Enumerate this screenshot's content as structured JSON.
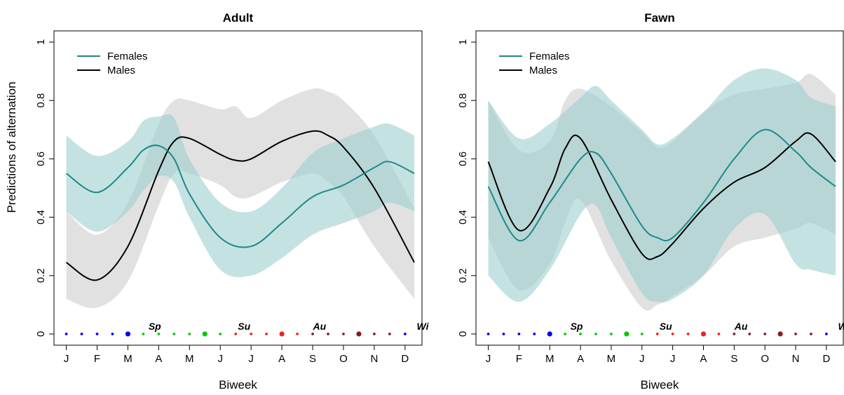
{
  "figure": {
    "ylabel": "Predictions of alternation",
    "xlabel": "Biweek"
  },
  "legend": [
    {
      "name": "Females",
      "color": "#1a8a8a"
    },
    {
      "name": "Males",
      "color": "#000000"
    }
  ],
  "colors": {
    "female_band": "#9fcfcf",
    "male_band": "#c8c8c8"
  },
  "xticks": [
    {
      "x": 1,
      "label": "J"
    },
    {
      "x": 3,
      "label": "F"
    },
    {
      "x": 5,
      "label": "M"
    },
    {
      "x": 7,
      "label": "A"
    },
    {
      "x": 9,
      "label": "M"
    },
    {
      "x": 11,
      "label": "J"
    },
    {
      "x": 13,
      "label": "J"
    },
    {
      "x": 15,
      "label": "A"
    },
    {
      "x": 17,
      "label": "S"
    },
    {
      "x": 19,
      "label": "O"
    },
    {
      "x": 21,
      "label": "N"
    },
    {
      "x": 23,
      "label": "D"
    }
  ],
  "yticks": [
    0,
    0.2,
    0.4,
    0.6,
    0.8,
    1
  ],
  "seasons": [
    {
      "label": "Sp",
      "x": 6.2
    },
    {
      "label": "Su",
      "x": 12.0
    },
    {
      "label": "Au",
      "x": 16.9
    },
    {
      "label": "Wi",
      "x": 23.6
    }
  ],
  "season_dots": [
    {
      "x": 1,
      "color": "#0000ee",
      "big": false
    },
    {
      "x": 2,
      "color": "#0000ee",
      "big": false
    },
    {
      "x": 3,
      "color": "#0000ee",
      "big": false
    },
    {
      "x": 4,
      "color": "#0000ee",
      "big": false
    },
    {
      "x": 5,
      "color": "#0000ee",
      "big": true
    },
    {
      "x": 6,
      "color": "#00cc00",
      "big": false
    },
    {
      "x": 7,
      "color": "#00cc00",
      "big": false
    },
    {
      "x": 8,
      "color": "#00cc00",
      "big": false
    },
    {
      "x": 9,
      "color": "#00cc00",
      "big": false
    },
    {
      "x": 10,
      "color": "#00cc00",
      "big": true
    },
    {
      "x": 11,
      "color": "#00cc00",
      "big": false
    },
    {
      "x": 12,
      "color": "#ee2222",
      "big": false
    },
    {
      "x": 13,
      "color": "#ee2222",
      "big": false
    },
    {
      "x": 14,
      "color": "#ee2222",
      "big": false
    },
    {
      "x": 15,
      "color": "#ee2222",
      "big": true
    },
    {
      "x": 16,
      "color": "#ee2222",
      "big": false
    },
    {
      "x": 17,
      "color": "#8b1a1a",
      "big": false
    },
    {
      "x": 18,
      "color": "#8b1a1a",
      "big": false
    },
    {
      "x": 19,
      "color": "#8b1a1a",
      "big": false
    },
    {
      "x": 20,
      "color": "#8b1a1a",
      "big": true
    },
    {
      "x": 21,
      "color": "#8b1a1a",
      "big": false
    },
    {
      "x": 22,
      "color": "#8b1a1a",
      "big": false
    },
    {
      "x": 23,
      "color": "#0000ee",
      "big": false
    }
  ],
  "chart_data": [
    {
      "type": "line",
      "title": "Adult",
      "xlabel": "Biweek",
      "ylabel": "Predictions of alternation",
      "xlim": [
        1,
        23.6
      ],
      "ylim": [
        0,
        1
      ],
      "series": [
        {
          "name": "Males",
          "x": [
            1,
            3,
            5,
            7,
            8,
            9,
            11,
            12,
            13,
            15,
            17,
            18,
            19,
            21,
            23.6
          ],
          "y": [
            0.245,
            0.185,
            0.3,
            0.56,
            0.66,
            0.67,
            0.615,
            0.595,
            0.6,
            0.66,
            0.695,
            0.68,
            0.64,
            0.5,
            0.245
          ],
          "lower": [
            0.12,
            0.09,
            0.18,
            0.44,
            0.55,
            0.55,
            0.51,
            0.47,
            0.47,
            0.52,
            0.55,
            0.52,
            0.47,
            0.3,
            0.12
          ],
          "upper": [
            0.42,
            0.34,
            0.45,
            0.72,
            0.8,
            0.8,
            0.77,
            0.78,
            0.74,
            0.8,
            0.84,
            0.83,
            0.8,
            0.68,
            0.43
          ]
        },
        {
          "name": "Females",
          "x": [
            1,
            3,
            5,
            6,
            7,
            8,
            9,
            11,
            13,
            15,
            17,
            19,
            21,
            22,
            23.6
          ],
          "y": [
            0.55,
            0.485,
            0.57,
            0.63,
            0.645,
            0.6,
            0.48,
            0.33,
            0.3,
            0.38,
            0.47,
            0.51,
            0.57,
            0.59,
            0.55
          ],
          "lower": [
            0.42,
            0.35,
            0.42,
            0.49,
            0.54,
            0.52,
            0.4,
            0.22,
            0.2,
            0.26,
            0.34,
            0.38,
            0.42,
            0.45,
            0.42
          ],
          "upper": [
            0.68,
            0.61,
            0.66,
            0.73,
            0.745,
            0.74,
            0.6,
            0.45,
            0.42,
            0.5,
            0.62,
            0.67,
            0.71,
            0.72,
            0.68
          ]
        }
      ]
    },
    {
      "type": "line",
      "title": "Fawn",
      "xlabel": "Biweek",
      "ylabel": "",
      "xlim": [
        1,
        23.6
      ],
      "ylim": [
        0,
        1
      ],
      "series": [
        {
          "name": "Males",
          "x": [
            1,
            3,
            5,
            6,
            7,
            9,
            11,
            12,
            13,
            15,
            17,
            19,
            21,
            22,
            23.6
          ],
          "y": [
            0.59,
            0.355,
            0.5,
            0.635,
            0.67,
            0.46,
            0.275,
            0.265,
            0.31,
            0.43,
            0.52,
            0.57,
            0.66,
            0.685,
            0.59
          ],
          "lower": [
            0.33,
            0.15,
            0.24,
            0.38,
            0.46,
            0.25,
            0.09,
            0.1,
            0.13,
            0.2,
            0.3,
            0.33,
            0.36,
            0.38,
            0.34
          ],
          "upper": [
            0.8,
            0.63,
            0.66,
            0.8,
            0.84,
            0.78,
            0.69,
            0.64,
            0.66,
            0.76,
            0.82,
            0.84,
            0.86,
            0.89,
            0.82
          ]
        },
        {
          "name": "Females",
          "x": [
            1,
            3,
            5,
            7,
            8,
            9,
            11,
            12,
            13,
            15,
            17,
            19,
            21,
            22,
            23.6
          ],
          "y": [
            0.505,
            0.32,
            0.45,
            0.6,
            0.62,
            0.55,
            0.37,
            0.33,
            0.33,
            0.45,
            0.6,
            0.7,
            0.625,
            0.57,
            0.505
          ],
          "lower": [
            0.2,
            0.11,
            0.22,
            0.41,
            0.44,
            0.33,
            0.14,
            0.11,
            0.12,
            0.2,
            0.36,
            0.41,
            0.24,
            0.22,
            0.2
          ],
          "upper": [
            0.8,
            0.67,
            0.72,
            0.81,
            0.85,
            0.8,
            0.7,
            0.65,
            0.67,
            0.76,
            0.87,
            0.91,
            0.87,
            0.81,
            0.78
          ]
        }
      ]
    }
  ]
}
